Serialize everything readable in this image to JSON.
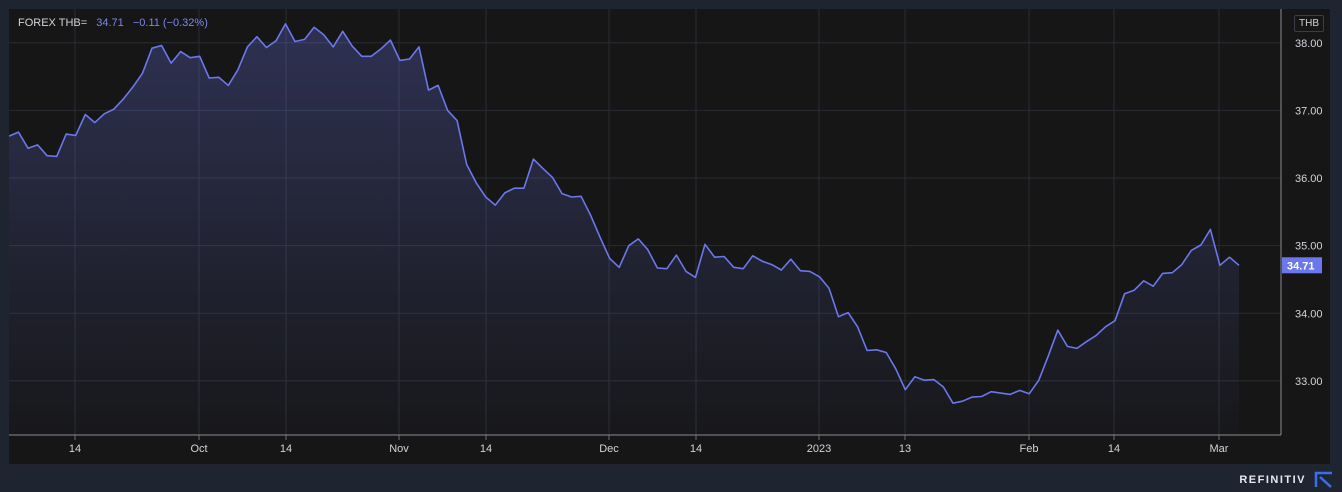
{
  "legend": {
    "symbol": "FOREX THB=",
    "last": "34.71",
    "change": "−0.11 (−0.32%)"
  },
  "currency": "THB",
  "brand": "REFINITIV",
  "colors": {
    "line": "#6b77ec",
    "label_bg": "#6b77ec",
    "grid": "#2a2c33",
    "text": "#d2d4da"
  },
  "chart_data": {
    "type": "area",
    "ylim": [
      32.2,
      38.5
    ],
    "y_ticks": [
      "33.00",
      "34.00",
      "35.00",
      "36.00",
      "37.00",
      "38.00"
    ],
    "x_ticks": [
      "14",
      "Oct",
      "14",
      "Nov",
      "14",
      "Dec",
      "14",
      "2023",
      "13",
      "Feb",
      "14",
      "Mar"
    ],
    "last_label": "34.71",
    "values": [
      36.62,
      36.68,
      36.44,
      36.49,
      36.33,
      36.32,
      36.65,
      36.63,
      36.94,
      36.82,
      36.95,
      37.02,
      37.17,
      37.35,
      37.55,
      37.92,
      37.96,
      37.7,
      37.87,
      37.78,
      37.8,
      37.48,
      37.49,
      37.37,
      37.6,
      37.94,
      38.09,
      37.93,
      38.03,
      38.28,
      38.02,
      38.05,
      38.23,
      38.12,
      37.94,
      38.17,
      37.95,
      37.8,
      37.8,
      37.91,
      38.04,
      37.74,
      37.76,
      37.94,
      37.3,
      37.37,
      37.0,
      36.85,
      36.2,
      35.93,
      35.72,
      35.6,
      35.78,
      35.85,
      35.85,
      36.28,
      36.14,
      36.01,
      35.77,
      35.72,
      35.73,
      35.45,
      35.12,
      34.81,
      34.68,
      35.0,
      35.1,
      34.94,
      34.67,
      34.66,
      34.86,
      34.62,
      34.53,
      35.02,
      34.83,
      34.84,
      34.68,
      34.66,
      34.85,
      34.77,
      34.72,
      34.64,
      34.8,
      34.63,
      34.62,
      34.54,
      34.37,
      33.95,
      34.01,
      33.8,
      33.45,
      33.46,
      33.42,
      33.18,
      32.87,
      33.06,
      33.01,
      33.02,
      32.91,
      32.67,
      32.7,
      32.76,
      32.77,
      32.84,
      32.82,
      32.8,
      32.86,
      32.81,
      33.01,
      33.37,
      33.75,
      33.51,
      33.48,
      33.58,
      33.67,
      33.8,
      33.89,
      34.29,
      34.34,
      34.48,
      34.4,
      34.59,
      34.6,
      34.72,
      34.93,
      35.01,
      35.24,
      34.71,
      34.83,
      34.71
    ]
  }
}
